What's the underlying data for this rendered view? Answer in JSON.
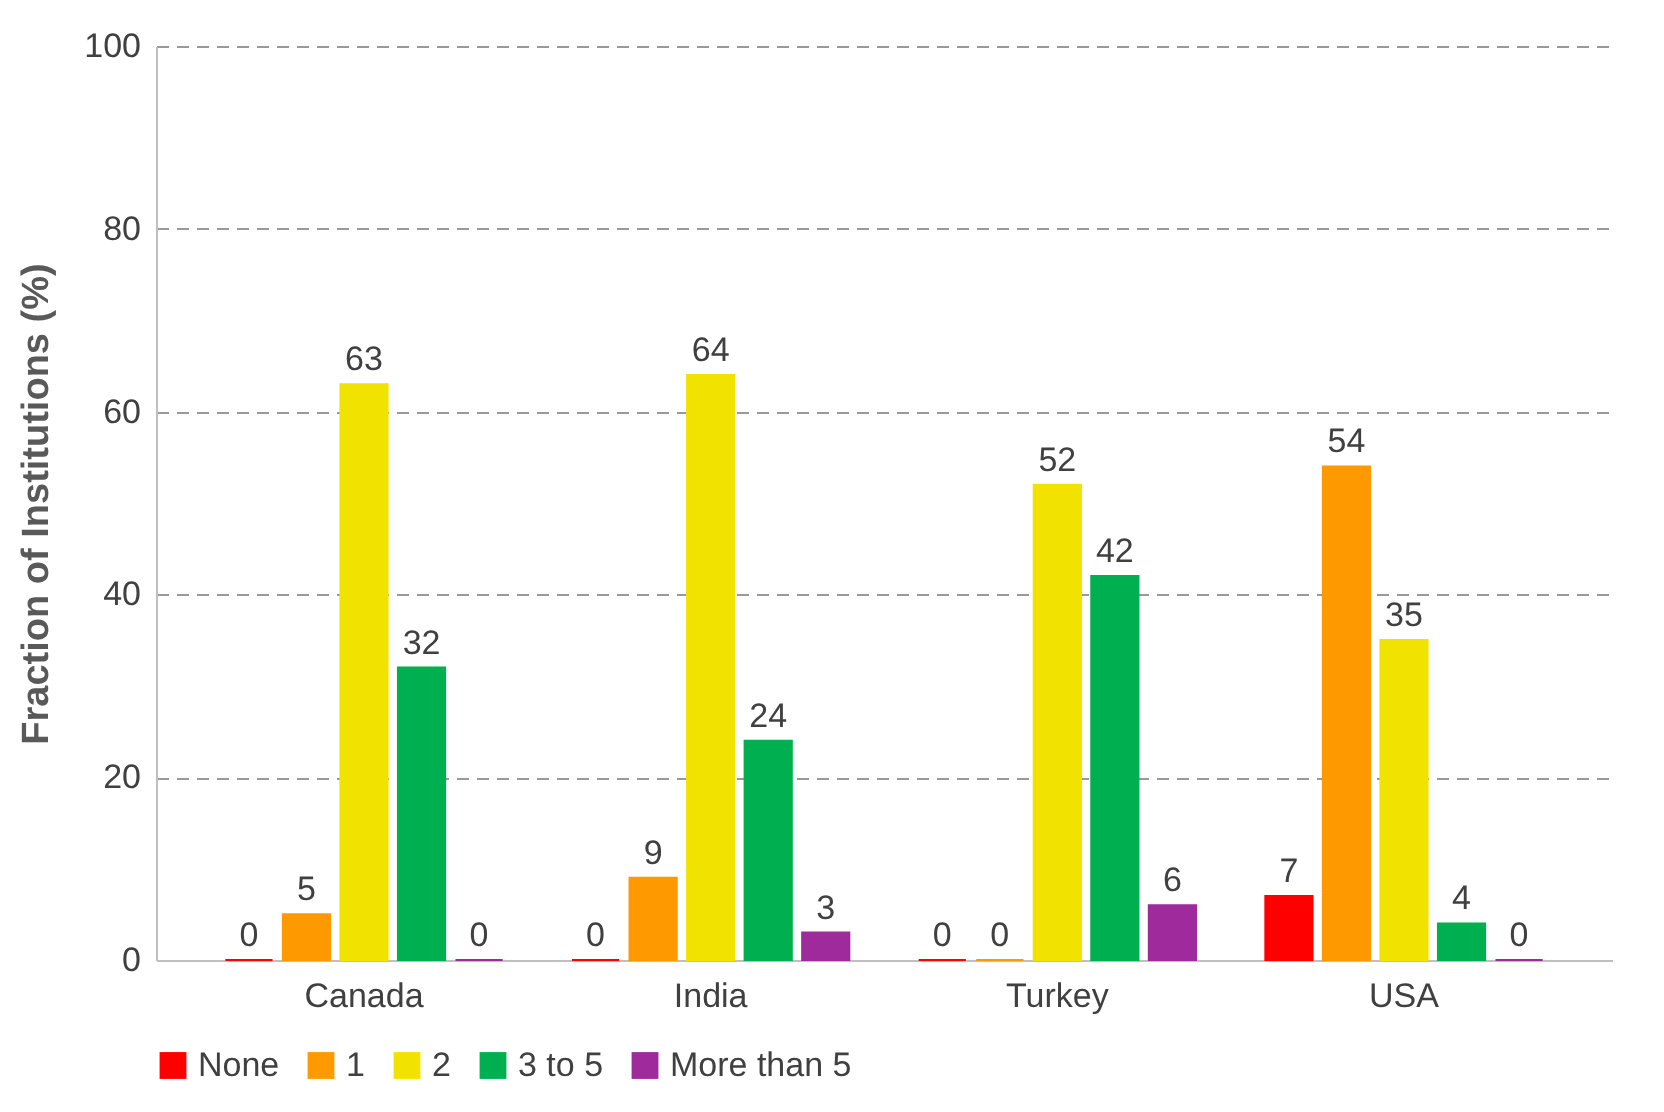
{
  "chart_data": {
    "type": "bar",
    "ylabel": "Fraction of Institutions (%)",
    "categories": [
      "Canada",
      "India",
      "Turkey",
      "USA"
    ],
    "series": [
      {
        "name": "None",
        "color": "#ff0000",
        "values": [
          0,
          0,
          0,
          7
        ]
      },
      {
        "name": "1",
        "color": "#ff9900",
        "values": [
          5,
          9,
          0,
          54
        ]
      },
      {
        "name": "2",
        "color": "#f2e200",
        "values": [
          63,
          64,
          52,
          35
        ]
      },
      {
        "name": "3 to 5",
        "color": "#00b050",
        "values": [
          32,
          24,
          42,
          4
        ]
      },
      {
        "name": "More than 5",
        "color": "#9e2a9c",
        "values": [
          0,
          3,
          6,
          0
        ]
      }
    ],
    "ylim": [
      0,
      100
    ],
    "yticks": [
      0,
      20,
      40,
      60,
      80,
      100
    ],
    "grid": "y",
    "legend": "bottom",
    "data_labels": true
  }
}
